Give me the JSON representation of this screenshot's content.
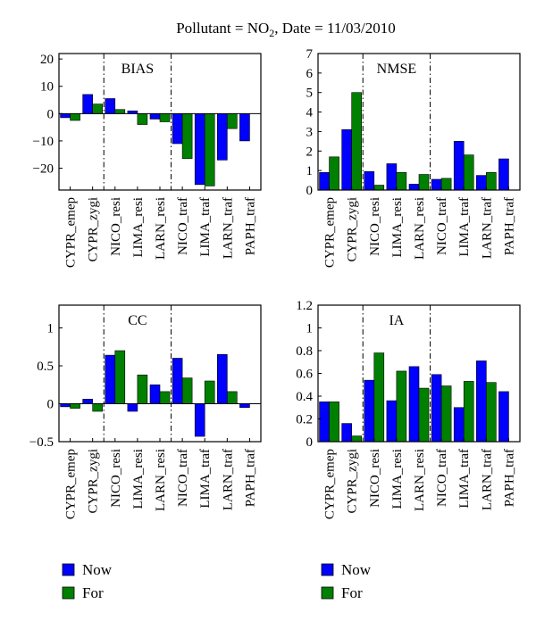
{
  "figure": {
    "title_prefix": "Pollutant = NO",
    "title_sub": "2",
    "title_suffix": ", Date = 11/03/2010"
  },
  "colors": {
    "now": "#0000ff",
    "for": "#008000"
  },
  "legend": [
    {
      "label": "Now",
      "color": "#0000ff"
    },
    {
      "label": "For",
      "color": "#008000"
    }
  ],
  "chart_data": [
    {
      "type": "bar",
      "title": "BIAS",
      "categories": [
        "CYPR_emep",
        "CYPR_zygi",
        "NICO_resi",
        "LIMA_resi",
        "LARN_resi",
        "NICO_traf",
        "LIMA_traf",
        "LARN_traf",
        "PAPH_traf"
      ],
      "series": [
        {
          "name": "Now",
          "values": [
            -1.5,
            7,
            5.5,
            1,
            -2,
            -11,
            -26,
            -17,
            -10
          ]
        },
        {
          "name": "For",
          "values": [
            -2.5,
            3.5,
            1.5,
            -4,
            -3,
            -16.5,
            -26.5,
            -5.5,
            null
          ]
        }
      ],
      "ylim": [
        -28,
        22
      ],
      "yticks": [
        -20,
        -10,
        0,
        10,
        20
      ]
    },
    {
      "type": "bar",
      "title": "NMSE",
      "categories": [
        "CYPR_emep",
        "CYPR_zygi",
        "NICO_resi",
        "LIMA_resi",
        "LARN_resi",
        "NICO_traf",
        "LIMA_traf",
        "LARN_traf",
        "PAPH_traf"
      ],
      "series": [
        {
          "name": "Now",
          "values": [
            0.9,
            3.1,
            0.95,
            1.35,
            0.3,
            0.55,
            2.5,
            0.75,
            1.6
          ]
        },
        {
          "name": "For",
          "values": [
            1.7,
            5.0,
            0.25,
            0.9,
            0.8,
            0.6,
            1.8,
            0.9,
            null
          ]
        }
      ],
      "ylim": [
        0,
        7
      ],
      "yticks": [
        0,
        1,
        2,
        3,
        4,
        5,
        6,
        7
      ]
    },
    {
      "type": "bar",
      "title": "CC",
      "categories": [
        "CYPR_emep",
        "CYPR_zygi",
        "NICO_resi",
        "LIMA_resi",
        "LARN_resi",
        "NICO_traf",
        "LIMA_traf",
        "LARN_traf",
        "PAPH_traf"
      ],
      "series": [
        {
          "name": "Now",
          "values": [
            -0.04,
            0.06,
            0.64,
            -0.1,
            0.25,
            0.6,
            -0.43,
            0.65,
            -0.05
          ]
        },
        {
          "name": "For",
          "values": [
            -0.06,
            -0.1,
            0.7,
            0.38,
            0.16,
            0.34,
            0.3,
            0.16,
            null
          ]
        }
      ],
      "ylim": [
        -0.5,
        1.3
      ],
      "yticks": [
        -0.5,
        0,
        0.5,
        1
      ],
      "ytick_labels": [
        "−0.5",
        "0",
        "0.5",
        "1"
      ]
    },
    {
      "type": "bar",
      "title": "IA",
      "categories": [
        "CYPR_emep",
        "CYPR_zygi",
        "NICO_resi",
        "LIMA_resi",
        "LARN_resi",
        "NICO_traf",
        "LIMA_traf",
        "LARN_traf",
        "PAPH_traf"
      ],
      "series": [
        {
          "name": "Now",
          "values": [
            0.35,
            0.16,
            0.54,
            0.36,
            0.66,
            0.59,
            0.3,
            0.71,
            0.44
          ]
        },
        {
          "name": "For",
          "values": [
            0.35,
            0.05,
            0.78,
            0.62,
            0.47,
            0.49,
            0.53,
            0.52,
            null
          ]
        }
      ],
      "ylim": [
        0,
        1.2
      ],
      "yticks": [
        0,
        0.2,
        0.4,
        0.6,
        0.8,
        1,
        1.2
      ]
    }
  ]
}
